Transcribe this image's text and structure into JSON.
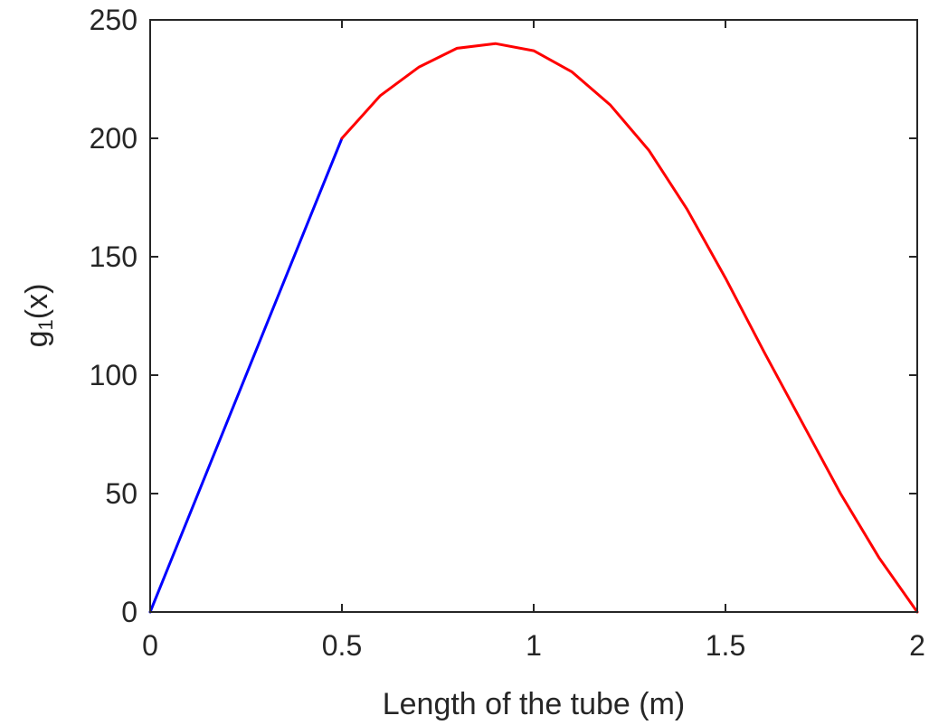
{
  "chart_data": {
    "type": "line",
    "title": "",
    "xlabel": "Length of the tube (m)",
    "ylabel": {
      "base": "g",
      "subscript": "1",
      "args": "(x)"
    },
    "xlim": [
      0,
      2
    ],
    "ylim": [
      0,
      250
    ],
    "xticks": [
      0,
      0.5,
      1,
      1.5,
      2
    ],
    "xtick_labels": [
      "0",
      "0.5",
      "1",
      "1.5",
      "2"
    ],
    "yticks": [
      0,
      50,
      100,
      150,
      200,
      250
    ],
    "ytick_labels": [
      "0",
      "50",
      "100",
      "150",
      "200",
      "250"
    ],
    "grid": false,
    "series": [
      {
        "color": "#0000ff",
        "x": [
          0,
          0.1,
          0.2,
          0.3,
          0.4,
          0.5
        ],
        "y": [
          0,
          40,
          80,
          120,
          160,
          200
        ]
      },
      {
        "color": "#ff0000",
        "x": [
          0.5,
          0.6,
          0.7,
          0.8,
          0.9,
          1.0,
          1.1,
          1.2,
          1.3,
          1.4,
          1.5,
          1.6,
          1.7,
          1.8,
          1.9,
          2.0
        ],
        "y": [
          200,
          218,
          230,
          238,
          240,
          237,
          228,
          214,
          195,
          170,
          141,
          110,
          80,
          50,
          23,
          0
        ]
      }
    ]
  }
}
